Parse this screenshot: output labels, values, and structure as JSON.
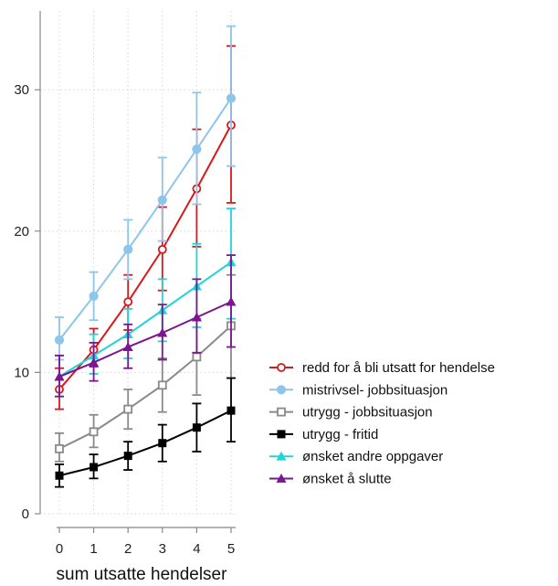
{
  "chart_data": {
    "type": "line",
    "title": "",
    "xlabel": "sum utsatte hendelser",
    "ylabel": "",
    "x": [
      0,
      1,
      2,
      3,
      4,
      5
    ],
    "xticks": [
      "0",
      "1",
      "2",
      "3",
      "4",
      "5"
    ],
    "yticks": [
      "0",
      "10",
      "20",
      "30"
    ],
    "ytick_values": [
      0,
      10,
      20,
      30
    ],
    "xlim": [
      -0.1,
      5.1
    ],
    "ylim": [
      0,
      35
    ],
    "grid": true,
    "legend_position": "right",
    "series": [
      {
        "name": "redd for å bli utsatt for hendelse",
        "color": "#d7191c",
        "marker": "circle-open",
        "values": [
          8.8,
          11.6,
          15.0,
          18.7,
          23.0,
          27.5
        ],
        "lower": [
          7.4,
          10.4,
          13.0,
          15.8,
          18.9,
          22.0
        ],
        "upper": [
          10.3,
          13.1,
          16.9,
          21.7,
          27.2,
          33.1
        ]
      },
      {
        "name": "mistrivsel- jobbsituasjon",
        "color": "#8ec5ea",
        "marker": "circle-filled",
        "values": [
          12.3,
          15.4,
          18.7,
          22.2,
          25.8,
          29.4
        ],
        "lower": [
          10.9,
          13.7,
          16.6,
          19.3,
          21.9,
          24.6
        ],
        "upper": [
          13.9,
          17.1,
          20.8,
          25.2,
          29.8,
          34.5
        ]
      },
      {
        "name": "utrygg - jobbsituasjon",
        "color": "#8a8a8a",
        "marker": "square-open",
        "values": [
          4.6,
          5.8,
          7.4,
          9.1,
          11.1,
          13.3
        ],
        "lower": [
          3.7,
          4.7,
          6.0,
          7.2,
          8.4,
          9.6
        ],
        "upper": [
          5.7,
          7.0,
          8.8,
          11.0,
          13.8,
          16.9
        ]
      },
      {
        "name": "utrygg - fritid",
        "color": "#000000",
        "marker": "square-filled",
        "values": [
          2.7,
          3.3,
          4.1,
          5.0,
          6.1,
          7.3
        ],
        "lower": [
          1.9,
          2.5,
          3.1,
          3.7,
          4.4,
          5.1
        ],
        "upper": [
          3.5,
          4.2,
          5.1,
          6.3,
          7.8,
          9.6
        ]
      },
      {
        "name": "ønsket andre oppgaver",
        "color": "#22d3d8",
        "marker": "triangle-filled",
        "values": [
          9.7,
          11.2,
          12.7,
          14.4,
          16.1,
          17.8
        ],
        "lower": [
          8.3,
          9.9,
          11.0,
          12.2,
          13.2,
          13.8
        ],
        "upper": [
          11.2,
          12.7,
          14.5,
          16.6,
          19.1,
          21.6
        ]
      },
      {
        "name": "ønsket å slutte",
        "color": "#7b1591",
        "marker": "triangle-filled",
        "values": [
          9.7,
          10.7,
          11.8,
          12.8,
          13.9,
          15.0
        ],
        "lower": [
          8.3,
          9.4,
          10.3,
          10.9,
          11.4,
          11.8
        ],
        "upper": [
          11.2,
          12.1,
          13.4,
          14.8,
          16.6,
          18.3
        ]
      }
    ]
  }
}
